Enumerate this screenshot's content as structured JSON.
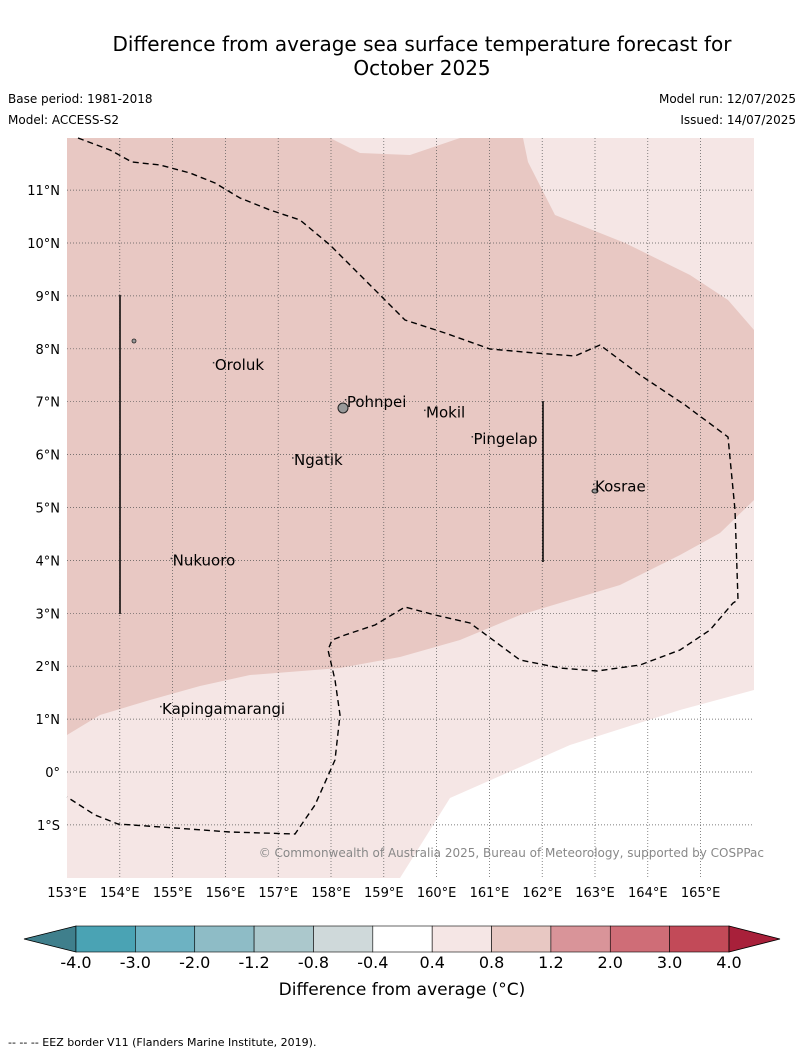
{
  "header": {
    "title_line1": "Difference from average sea surface temperature forecast for",
    "title_line2": "October 2025",
    "base_period": "Base period: 1981-2018",
    "model": "Model: ACCESS-S2",
    "model_run": "Model run: 12/07/2025",
    "issued": "Issued: 14/07/2025"
  },
  "map": {
    "lon_labels": [
      "153°E",
      "154°E",
      "155°E",
      "156°E",
      "157°E",
      "158°E",
      "159°E",
      "160°E",
      "161°E",
      "162°E",
      "163°E",
      "164°E",
      "165°E"
    ],
    "lat_labels": [
      "11°N",
      "10°N",
      "9°N",
      "8°N",
      "7°N",
      "6°N",
      "5°N",
      "4°N",
      "3°N",
      "2°N",
      "1°N",
      "0°",
      "1°S"
    ],
    "places": [
      {
        "name": "Oroluk",
        "lon": 155.8,
        "lat": 7.6
      },
      {
        "name": "Pohnpei",
        "lon": 158.3,
        "lat": 6.9
      },
      {
        "name": "Mokil",
        "lon": 159.8,
        "lat": 6.7
      },
      {
        "name": "Pingelap",
        "lon": 160.7,
        "lat": 6.2
      },
      {
        "name": "Ngatik",
        "lon": 157.3,
        "lat": 5.8
      },
      {
        "name": "Kosrae",
        "lon": 163.0,
        "lat": 5.3
      },
      {
        "name": "Nukuoro",
        "lon": 155.0,
        "lat": 3.9
      },
      {
        "name": "Kapingamarangi",
        "lon": 154.8,
        "lat": 1.1
      }
    ],
    "copyright": "© Commonwealth of Australia 2025, Bureau of Meteorology, supported by COSPPac"
  },
  "colorbar": {
    "ticks": [
      "-4.0",
      "-3.0",
      "-2.0",
      "-1.2",
      "-0.8",
      "-0.4",
      "0.4",
      "0.8",
      "1.2",
      "2.0",
      "3.0",
      "4.0"
    ],
    "colors": [
      "#4aa3b4",
      "#6db2c2",
      "#8ebcc6",
      "#abc8cc",
      "#cfd9da",
      "#ffffff",
      "#f5e6e5",
      "#e8c8c3",
      "#d99499",
      "#cf6d77",
      "#c24a58"
    ],
    "low_extend_color": "#3f7f8c",
    "high_extend_color": "#a8203a",
    "label": "Difference from average (°C)"
  },
  "footnote": "--  --  -- EEZ border V11 (Flanders Marine Institute, 2019)."
}
